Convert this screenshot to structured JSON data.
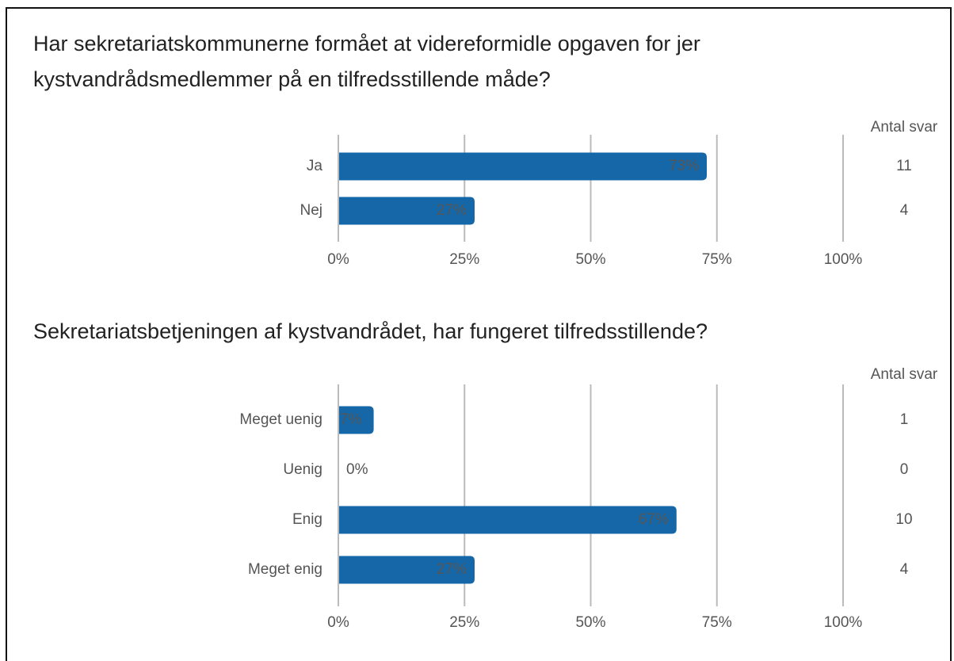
{
  "chart_data": [
    {
      "type": "bar",
      "title": "Har sekretariatskommunerne formået at videreformidle opgaven for jer kystvandrådsmedlemmer på en tilfredsstillende måde?",
      "categories": [
        "Ja",
        "Nej"
      ],
      "values": [
        73,
        27
      ],
      "value_labels": [
        "73%",
        "27%"
      ],
      "counts_label": "Antal svar",
      "counts": [
        11,
        4
      ],
      "color": "#1567a8",
      "xlim": [
        0,
        100
      ],
      "xticks": [
        {
          "value": 0,
          "label": "0%"
        },
        {
          "value": 25,
          "label": "25%"
        },
        {
          "value": 50,
          "label": "50%"
        },
        {
          "value": 75,
          "label": "75%"
        },
        {
          "value": 100,
          "label": "100%"
        }
      ],
      "grid": true
    },
    {
      "type": "bar",
      "title": "Sekretariatsbetjeningen af kystvandrådet, har fungeret tilfredsstillende?",
      "categories": [
        "Meget uenig",
        "Uenig",
        "Enig",
        "Meget enig"
      ],
      "values": [
        7,
        0,
        67,
        27
      ],
      "value_labels": [
        "7%",
        "0%",
        "67%",
        "27%"
      ],
      "counts_label": "Antal svar",
      "counts": [
        1,
        0,
        10,
        4
      ],
      "color": "#1567a8",
      "xlim": [
        0,
        100
      ],
      "xticks": [
        {
          "value": 0,
          "label": "0%"
        },
        {
          "value": 25,
          "label": "25%"
        },
        {
          "value": 50,
          "label": "50%"
        },
        {
          "value": 75,
          "label": "75%"
        },
        {
          "value": 100,
          "label": "100%"
        }
      ],
      "grid": true
    }
  ]
}
